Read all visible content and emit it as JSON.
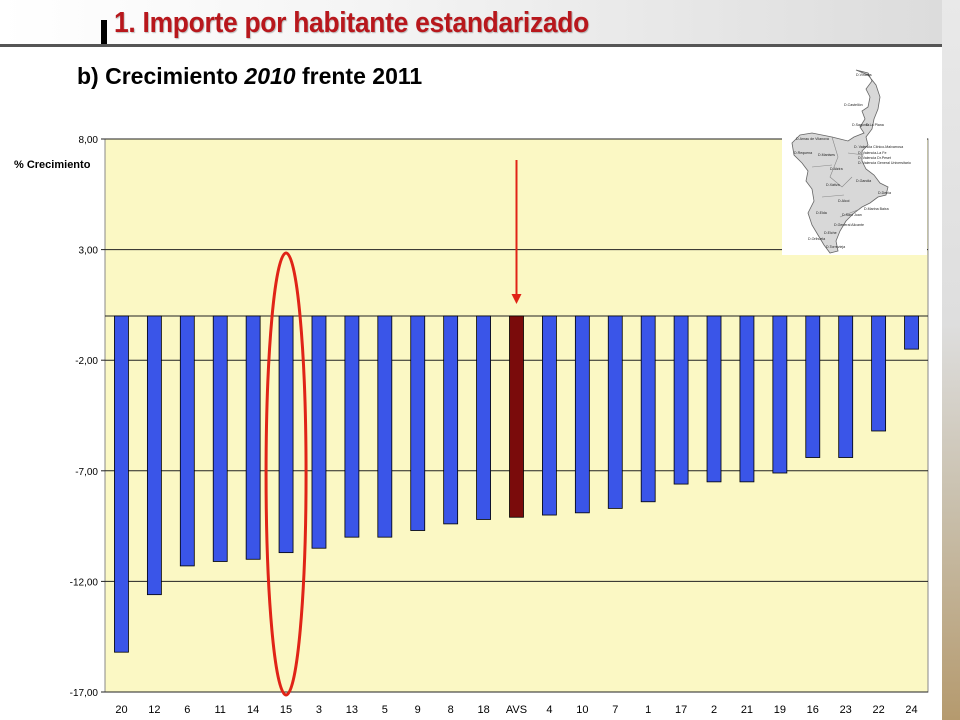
{
  "header": {
    "title": "1. Importe por habitante estandarizado",
    "subtitle_prefix": "b) Crecimiento",
    "subtitle_year": "2010",
    "subtitle_suffix": "frente 2011"
  },
  "colors": {
    "title": "#b8171c",
    "plot_bg": "#fbf8c4",
    "bar": "#3a55e8",
    "highlight_bar": "#7a0b0b",
    "annotation": "#e02417"
  },
  "chart_data": {
    "type": "bar",
    "title": "",
    "xlabel": "",
    "ylabel": "% Crecimiento",
    "ylim": [
      -17,
      8
    ],
    "yticks": [
      8,
      3,
      -2,
      -7,
      -12,
      -17
    ],
    "ytick_labels": [
      "8,00",
      "3,00",
      "-2,00",
      "-7,00",
      "-12,00",
      "-17,00"
    ],
    "grid": true,
    "categories": [
      "20",
      "12",
      "6",
      "11",
      "14",
      "15",
      "3",
      "13",
      "5",
      "9",
      "8",
      "18",
      "AVS",
      "4",
      "10",
      "7",
      "1",
      "17",
      "2",
      "21",
      "19",
      "16",
      "23",
      "22",
      "24"
    ],
    "values": [
      -15.2,
      -12.6,
      -11.3,
      -11.1,
      -11.0,
      -10.7,
      -10.5,
      -10.0,
      -10.0,
      -9.7,
      -9.4,
      -9.2,
      -9.1,
      -9.0,
      -8.9,
      -8.7,
      -8.4,
      -7.6,
      -7.5,
      -7.5,
      -7.1,
      -6.4,
      -6.4,
      -5.2,
      -1.5
    ],
    "highlight_category": "AVS",
    "circled_category": "15",
    "arrow_category": "AVS"
  },
  "map": {
    "labels": [
      "D.Vinaròs",
      "D.Castellón",
      "D.La Plana",
      "D.Sagunto",
      "D.Arnau de Vilanova",
      "D.Requena",
      "D.Manises",
      "D. Valencia Clínico-Malvarrosa",
      "D. Valencia-La Fe",
      "D. Valencia Dr.Peset",
      "D. Valencia General Universitario",
      "D.Alzira",
      "D.Xàtiva",
      "D.Gandia",
      "D.Alcoi",
      "D.Denia",
      "D.Marina Baixa",
      "D.Elda",
      "D.Sant Joan",
      "D.General Alicante",
      "D.Elche",
      "D.Orihuela",
      "D.Torrevieja"
    ]
  }
}
